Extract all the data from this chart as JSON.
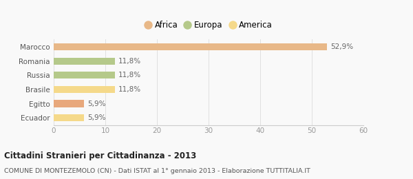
{
  "categories": [
    "Ecuador",
    "Egitto",
    "Brasile",
    "Russia",
    "Romania",
    "Marocco"
  ],
  "values": [
    5.9,
    5.9,
    11.8,
    11.8,
    11.8,
    52.9
  ],
  "labels": [
    "5,9%",
    "5,9%",
    "11,8%",
    "11,8%",
    "11,8%",
    "52,9%"
  ],
  "bar_colors": [
    "#f5d98a",
    "#e8a87c",
    "#f5d98a",
    "#b5c98a",
    "#b5c98a",
    "#e8b888"
  ],
  "legend": [
    {
      "label": "Africa",
      "color": "#e8b888"
    },
    {
      "label": "Europa",
      "color": "#b5c98a"
    },
    {
      "label": "America",
      "color": "#f5d98a"
    }
  ],
  "xlim": [
    0,
    60
  ],
  "xticks": [
    0,
    10,
    20,
    30,
    40,
    50,
    60
  ],
  "title": "Cittadini Stranieri per Cittadinanza - 2013",
  "subtitle": "COMUNE DI MONTEZEMOLO (CN) - Dati ISTAT al 1° gennaio 2013 - Elaborazione TUTTITALIA.IT",
  "background_color": "#f9f9f9",
  "bar_height": 0.5
}
